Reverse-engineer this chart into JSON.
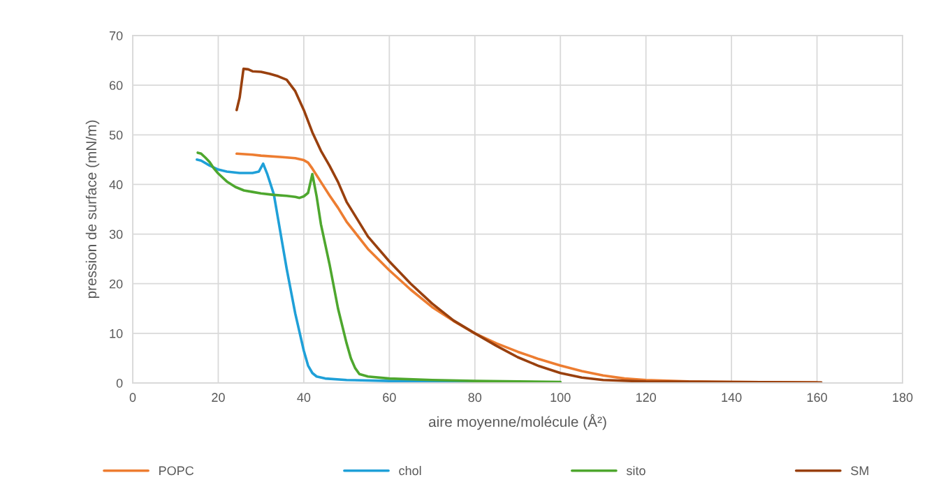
{
  "chart_data": {
    "type": "line",
    "xlabel": "aire moyenne/molécule (Å²)",
    "ylabel": "pression de surface (mN/m)",
    "xlim": [
      0,
      180
    ],
    "xticks": [
      0,
      20,
      40,
      60,
      80,
      100,
      120,
      140,
      160,
      180
    ],
    "ylim": [
      0,
      70
    ],
    "yticks": [
      0,
      10,
      20,
      30,
      40,
      50,
      60,
      70
    ],
    "grid": true,
    "legend": "bottom",
    "marker": "none",
    "line_style": "solid",
    "series": [
      {
        "name": "POPC",
        "color": "#ed7d31",
        "x": [
          24.3,
          28,
          30,
          35,
          38,
          40,
          41,
          42,
          44,
          46,
          48,
          50,
          55,
          60,
          65,
          70,
          75,
          80,
          85,
          90,
          95,
          100,
          105,
          110,
          115,
          120,
          130,
          140,
          160
        ],
        "values": [
          46.2,
          46,
          45.8,
          45.5,
          45.3,
          44.9,
          44.4,
          43.2,
          40.5,
          37.8,
          35.3,
          32.5,
          27,
          22.7,
          18.8,
          15.3,
          12.5,
          10,
          8,
          6.3,
          4.8,
          3.5,
          2.4,
          1.5,
          0.9,
          0.6,
          0.3,
          0.2,
          0.1
        ]
      },
      {
        "name": "chol",
        "color": "#1fa0d8",
        "x": [
          15,
          16,
          18,
          20,
          22,
          25,
          28,
          29.5,
          30.5,
          31.5,
          33,
          34,
          36,
          38,
          40,
          41,
          42,
          43,
          45,
          50,
          60,
          80
        ],
        "values": [
          45,
          44.8,
          43.8,
          43,
          42.6,
          42.3,
          42.3,
          42.6,
          44.2,
          42,
          38,
          33,
          23,
          14,
          6.5,
          3.5,
          2,
          1.3,
          0.9,
          0.6,
          0.4,
          0.2
        ]
      },
      {
        "name": "sito",
        "color": "#4ea72e",
        "x": [
          15.2,
          16,
          17,
          18,
          19,
          20,
          22,
          24,
          26,
          28,
          30,
          33,
          36,
          38,
          39,
          40,
          41,
          42,
          43,
          44,
          46,
          48,
          50,
          51,
          52,
          53,
          55,
          60,
          70,
          80,
          100
        ],
        "values": [
          46.4,
          46.2,
          45.4,
          44.5,
          43.2,
          42.2,
          40.6,
          39.5,
          38.8,
          38.5,
          38.2,
          37.9,
          37.7,
          37.5,
          37.3,
          37.6,
          38.3,
          42.1,
          37.6,
          32,
          24,
          15,
          8,
          5,
          3,
          1.8,
          1.3,
          0.9,
          0.6,
          0.4,
          0.2
        ]
      },
      {
        "name": "SM",
        "color": "#99400e",
        "x": [
          24.3,
          25,
          25.9,
          27,
          28,
          30,
          32,
          34,
          36,
          38,
          40,
          42,
          44,
          46,
          48,
          50,
          55,
          60,
          65,
          70,
          75,
          80,
          85,
          90,
          95,
          100,
          105,
          110,
          120,
          140,
          161
        ],
        "values": [
          55,
          57.5,
          63.3,
          63.2,
          62.8,
          62.7,
          62.3,
          61.8,
          61.1,
          58.8,
          55,
          50.5,
          46.8,
          43.8,
          40.5,
          36.5,
          29.5,
          24.5,
          20,
          16,
          12.6,
          10,
          7.5,
          5.2,
          3.4,
          2,
          1.1,
          0.6,
          0.3,
          0.2,
          0.1
        ]
      }
    ]
  }
}
